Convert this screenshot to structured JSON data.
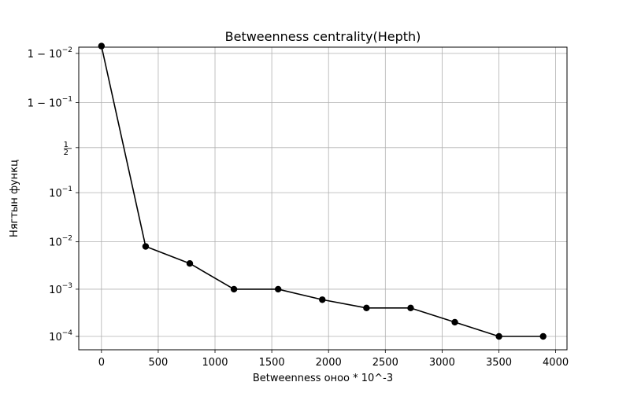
{
  "chart_data": {
    "type": "line",
    "title": "Betweenness centrality(Hepth)",
    "xlabel": "Betweenness оноо * 10^-3",
    "ylabel": "Нягтын функц",
    "grid": true,
    "xlim": [
      -200,
      4100
    ],
    "x_ticks": [
      0,
      500,
      1000,
      1500,
      2000,
      2500,
      3000,
      3500,
      4000
    ],
    "x_tick_labels": [
      "0",
      "500",
      "1000",
      "1500",
      "2000",
      "2500",
      "3000",
      "3500",
      "4000"
    ],
    "y_scale": "logit",
    "y_ticks": [
      0.0001,
      0.001,
      0.01,
      0.1,
      0.5,
      0.9,
      0.99
    ],
    "y_tick_labels": [
      "10^{-4}",
      "10^{-3}",
      "10^{-2}",
      "10^{-1}",
      "1/2",
      "1-10^{-1}",
      "1-10^{-2}"
    ],
    "series": [
      {
        "color": "#000000",
        "marker": "circle",
        "x": [
          0,
          389,
          778,
          1167,
          1556,
          1945,
          2334,
          2723,
          3112,
          3501,
          3890
        ],
        "y": [
          0.993,
          0.008,
          0.0035,
          0.001,
          0.001,
          0.0006,
          0.0004,
          0.0004,
          0.0002,
          0.0001,
          0.0001
        ]
      }
    ]
  }
}
